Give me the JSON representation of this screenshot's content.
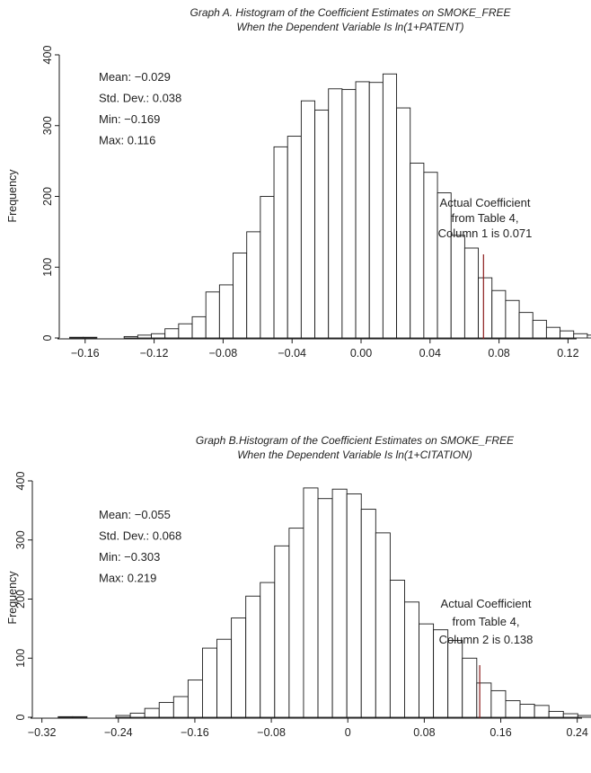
{
  "chart_data": [
    {
      "type": "bar",
      "title": "Graph A.  Histogram of the Coefficient Estimates on SMOKE_FREE",
      "subtitle": "When the Dependent Variable Is ln(1+PATENT)",
      "ylabel": "Frequency",
      "xlim": [
        -0.175,
        0.125
      ],
      "ylim": [
        0,
        400
      ],
      "xticks": [
        -0.16,
        -0.12,
        -0.08,
        -0.04,
        0,
        0.04,
        0.08,
        0.12
      ],
      "xtick_labels": [
        "−0.16",
        "−0.12",
        "−0.08",
        "−0.04",
        "0.00",
        "0.04",
        "0.08",
        "0.12"
      ],
      "yticks": [
        0,
        100,
        200,
        300,
        400
      ],
      "ytick_labels": [
        "0",
        "100",
        "200",
        "300",
        "400"
      ],
      "bin_start": -0.169,
      "bin_width": 0.0079,
      "values": [
        1,
        1,
        0,
        0,
        2,
        4,
        6,
        13,
        20,
        30,
        65,
        75,
        120,
        150,
        200,
        270,
        285,
        335,
        322,
        352,
        351,
        362,
        361,
        373,
        325,
        247,
        234,
        205,
        145,
        127,
        85,
        67,
        53,
        36,
        25,
        15,
        10,
        6,
        4,
        6,
        3,
        2,
        1
      ],
      "stats": [
        "Mean: −0.029",
        "Std. Dev.: 0.038",
        "Min: −0.169",
        "Max: 0.116"
      ],
      "reference_x": 0.071,
      "reference_label": [
        "Actual Coefficient",
        "from Table 4,",
        "Column 1 is 0.071"
      ],
      "reference_color": "#8b1a1a"
    },
    {
      "type": "bar",
      "title": "Graph B.Histogram of the Coefficient Estimates on SMOKE_FREE",
      "subtitle": "When the Dependent Variable Is ln(1+CITATION)",
      "ylabel": "Frequency",
      "xlim": [
        -0.33,
        0.245
      ],
      "ylim": [
        0,
        400
      ],
      "xticks": [
        -0.32,
        -0.24,
        -0.16,
        -0.08,
        0,
        0.08,
        0.16,
        0.24
      ],
      "xtick_labels": [
        "−0.32",
        "−0.24",
        "−0.16",
        "−0.08",
        "0",
        "0.08",
        "0.16",
        "0.24"
      ],
      "yticks": [
        0,
        100,
        200,
        300,
        400
      ],
      "ytick_labels": [
        "0",
        "100",
        "200",
        "300",
        "400"
      ],
      "bin_start": -0.303,
      "bin_width": 0.0151,
      "values": [
        1,
        1,
        0,
        0,
        3,
        7,
        15,
        25,
        35,
        63,
        117,
        132,
        168,
        205,
        228,
        290,
        320,
        388,
        370,
        386,
        378,
        352,
        312,
        232,
        195,
        158,
        148,
        130,
        100,
        58,
        45,
        28,
        22,
        20,
        10,
        6,
        3,
        2,
        1
      ],
      "stats": [
        "Mean: −0.055",
        "Std. Dev.: 0.068",
        "Min: −0.303",
        "Max: 0.219"
      ],
      "reference_x": 0.138,
      "reference_label": [
        "Actual Coefficient",
        "from Table 4,",
        "Column 2 is 0.138"
      ],
      "reference_color": "#8b1a1a"
    }
  ]
}
